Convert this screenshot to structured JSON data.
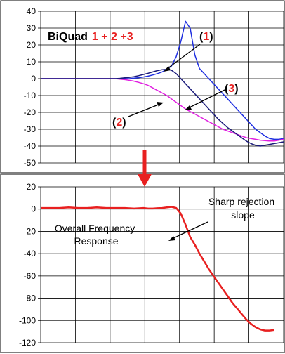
{
  "chart_data": [
    {
      "type": "line",
      "ylim": [
        -50,
        40
      ],
      "yticks": [
        "40",
        "30",
        "20",
        "10",
        "0",
        "-10",
        "-20",
        "-30",
        "-40",
        "-50"
      ],
      "grid": true,
      "title_prefix": "BiQuad",
      "title_highlight": "1 + 2 +3",
      "annotations": [
        {
          "open": "(",
          "num": "1",
          "close": ")"
        },
        {
          "open": "(",
          "num": "2",
          "close": ")"
        },
        {
          "open": "(",
          "num": "3",
          "close": ")"
        }
      ],
      "x": [
        0,
        1,
        2,
        3,
        4,
        5,
        6,
        7,
        7.5,
        8,
        8.5,
        9,
        9.5,
        10,
        10.5,
        11,
        11.5,
        12,
        12.5,
        13,
        13.5,
        14,
        14.5,
        15,
        15.5,
        16,
        16.5,
        17,
        17.5,
        18,
        18.5,
        19,
        19.5,
        20,
        20.5,
        21,
        21.5,
        22,
        22.5,
        23,
        23.5,
        24,
        24.5,
        25,
        25.5,
        26
      ],
      "series": [
        {
          "name": "(1)",
          "color": "#1f2fe0",
          "values": [
            0,
            0,
            0,
            0,
            0,
            0,
            0,
            0,
            0,
            0,
            0,
            0,
            0,
            0.3,
            0.6,
            1,
            1.5,
            2.2,
            3,
            4,
            5.5,
            7.5,
            13,
            22,
            34,
            30,
            14,
            6,
            3,
            0,
            -3,
            -6,
            -9,
            -12,
            -15,
            -18,
            -21,
            -24,
            -27,
            -30,
            -32,
            -34,
            -35.5,
            -36,
            -36,
            -35.5
          ]
        },
        {
          "name": "(2)",
          "color": "#e020e0",
          "values": [
            0,
            0,
            0,
            0,
            0,
            0,
            0,
            0,
            0,
            0,
            -0.3,
            -0.6,
            -1,
            -1.5,
            -2.2,
            -3,
            -4,
            -5.5,
            -7,
            -8.5,
            -10,
            -12,
            -14,
            -16,
            -18,
            -19.5,
            -21,
            -22.5,
            -24,
            -25.5,
            -27,
            -28.5,
            -30,
            -31,
            -32,
            -33,
            -34,
            -35,
            -35.5,
            -36,
            -36.5,
            -36.8,
            -37,
            -37,
            -36.5,
            -36
          ]
        },
        {
          "name": "(3)",
          "color": "#1a1a7a",
          "values": [
            0,
            0,
            0,
            0,
            0,
            0,
            0,
            0,
            0,
            0,
            0.2,
            0.5,
            0.8,
            1.2,
            1.8,
            2.5,
            3.2,
            4,
            4.8,
            5.3,
            5.5,
            5,
            3,
            0,
            -3,
            -6,
            -9,
            -12,
            -15,
            -18,
            -21,
            -24,
            -26.5,
            -29,
            -31,
            -33,
            -35,
            -37,
            -38.5,
            -39.5,
            -40,
            -39.5,
            -39,
            -38.5,
            -38,
            -37.5
          ]
        }
      ]
    },
    {
      "type": "line",
      "ylim": [
        -120,
        20
      ],
      "yticks": [
        "20",
        "0",
        "-20",
        "-40",
        "-60",
        "-80",
        "-100",
        "-120"
      ],
      "grid": true,
      "annotation_left": [
        "Overall Frequency",
        "Response"
      ],
      "annotation_right": [
        "Sharp rejection",
        "slope"
      ],
      "x": [
        0,
        1,
        2,
        3,
        4,
        5,
        6,
        7,
        8,
        9,
        10,
        11,
        11.5,
        12,
        12.5,
        13,
        13.5,
        14,
        14.5,
        15,
        15.5,
        16,
        16.5,
        17,
        17.5,
        18,
        18.5,
        19,
        19.5,
        20,
        20.5,
        21,
        21.5,
        22,
        22.5,
        23,
        23.5,
        24,
        24.5,
        25
      ],
      "series": [
        {
          "name": "Overall",
          "color": "#e82020",
          "values": [
            1,
            1,
            1,
            1.5,
            1,
            1,
            1.5,
            1,
            1,
            1,
            0.5,
            1,
            0.5,
            0.5,
            0.8,
            1,
            1.5,
            2,
            1,
            -4,
            -14,
            -25,
            -32,
            -40,
            -47,
            -54,
            -60,
            -66,
            -72,
            -78,
            -84,
            -89,
            -94,
            -99,
            -103,
            -106,
            -108,
            -109,
            -109,
            -108.5
          ]
        }
      ]
    }
  ],
  "colors": {
    "accent_red": "#e82020",
    "arrow_red": "#e82020"
  }
}
